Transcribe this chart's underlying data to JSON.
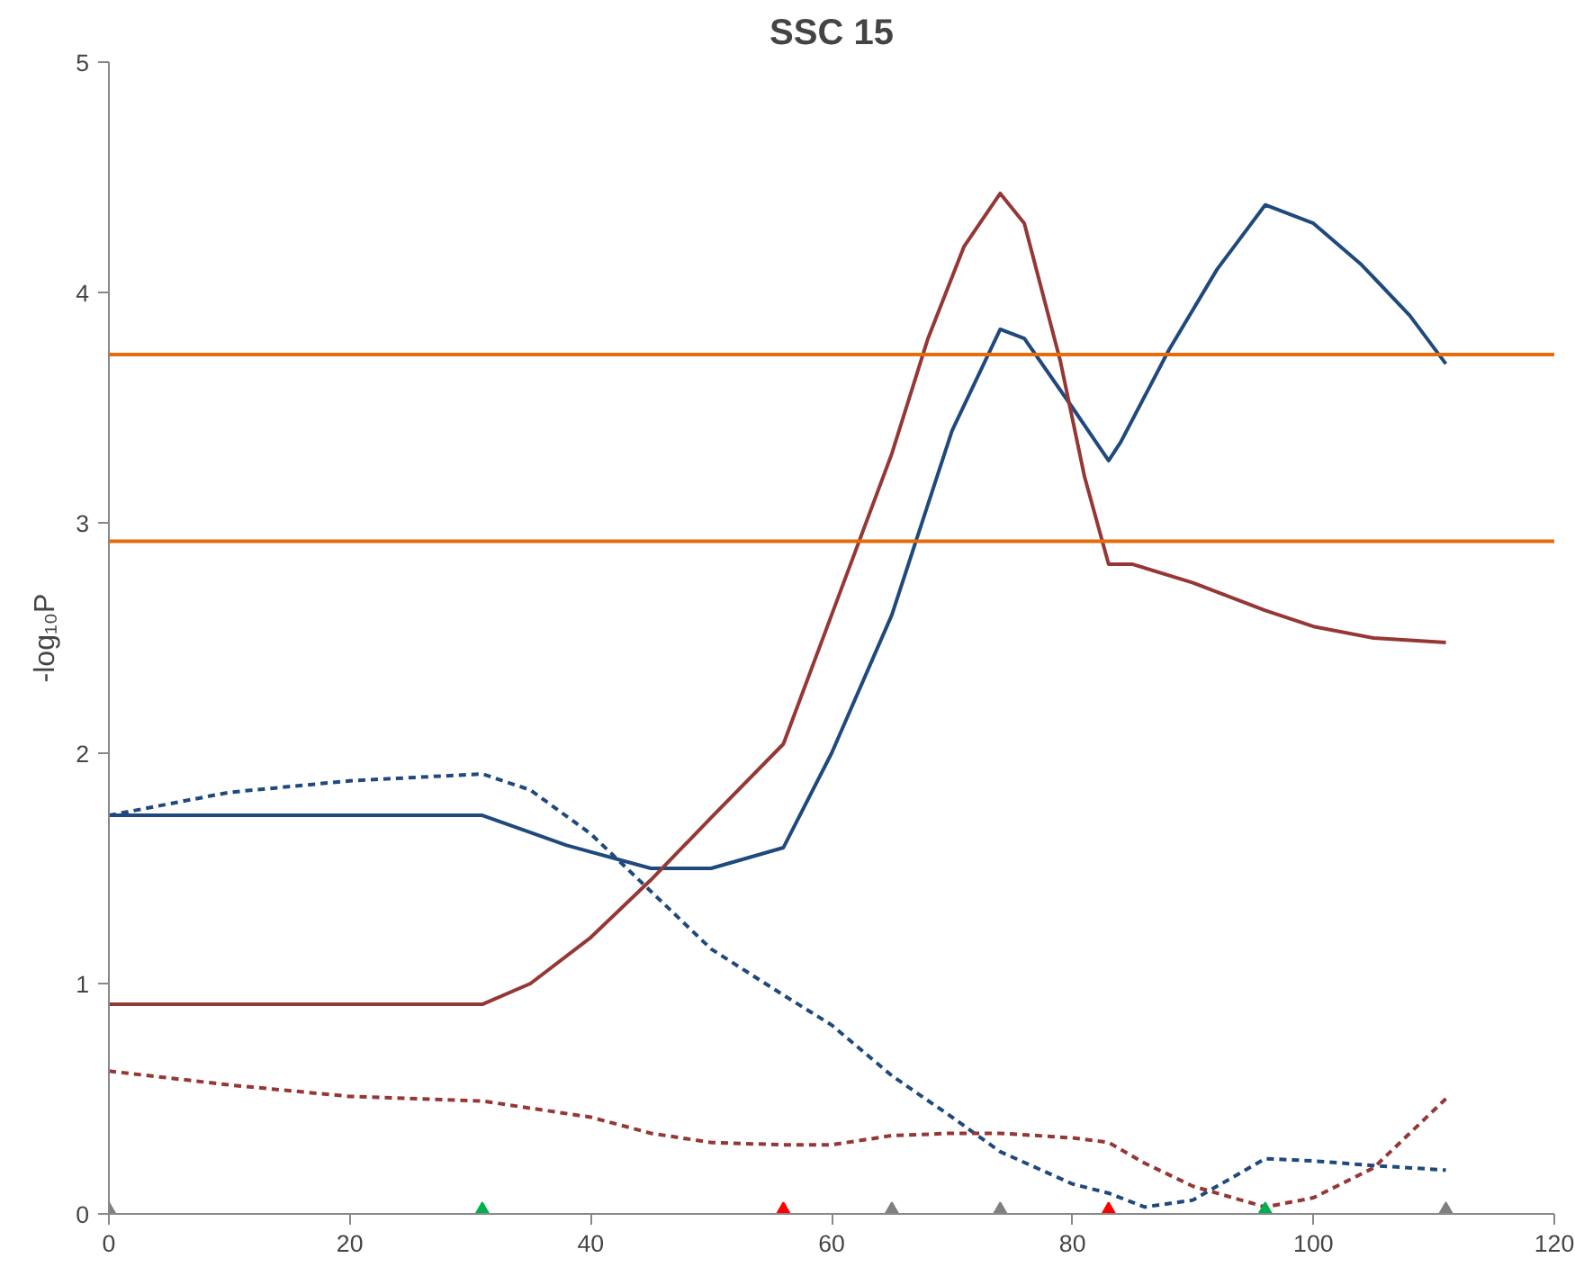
{
  "chart_data": {
    "type": "line",
    "title": "SSC 15",
    "ylabel": "-log₁₀P",
    "xlim": [
      0,
      120
    ],
    "ylim": [
      0,
      5
    ],
    "xticks": [
      0,
      20,
      40,
      60,
      80,
      100,
      120
    ],
    "yticks": [
      0,
      1,
      2,
      3,
      4,
      5
    ],
    "grid": false,
    "marker": "none",
    "series": [
      {
        "color": "#1f497d",
        "line_style": "solid",
        "x": [
          0,
          31,
          38,
          45,
          50,
          56,
          60,
          65,
          70,
          74,
          76,
          80,
          83,
          84,
          88,
          92,
          96,
          100,
          104,
          108,
          111
        ],
        "values": [
          1.73,
          1.73,
          1.6,
          1.5,
          1.5,
          1.59,
          2.0,
          2.6,
          3.4,
          3.84,
          3.8,
          3.5,
          3.27,
          3.35,
          3.75,
          4.1,
          4.38,
          4.3,
          4.12,
          3.9,
          3.69
        ]
      },
      {
        "color": "#953735",
        "line_style": "solid",
        "x": [
          0,
          31,
          35,
          40,
          45,
          50,
          56,
          60,
          65,
          68,
          71,
          74,
          76,
          79,
          81,
          83,
          85,
          90,
          96,
          100,
          105,
          111
        ],
        "values": [
          0.91,
          0.91,
          1.0,
          1.2,
          1.45,
          1.72,
          2.04,
          2.6,
          3.3,
          3.8,
          4.2,
          4.43,
          4.3,
          3.7,
          3.2,
          2.82,
          2.82,
          2.74,
          2.62,
          2.55,
          2.5,
          2.48
        ]
      },
      {
        "color": "#1f497d",
        "line_style": "dashed",
        "x": [
          0,
          10,
          20,
          31,
          35,
          40,
          45,
          50,
          56,
          60,
          65,
          70,
          74,
          80,
          83,
          86,
          90,
          96,
          100,
          105,
          111
        ],
        "values": [
          1.73,
          1.83,
          1.88,
          1.91,
          1.84,
          1.65,
          1.4,
          1.15,
          0.95,
          0.82,
          0.6,
          0.42,
          0.27,
          0.13,
          0.09,
          0.03,
          0.06,
          0.24,
          0.23,
          0.21,
          0.19
        ]
      },
      {
        "color": "#953735",
        "line_style": "dashed",
        "x": [
          0,
          10,
          20,
          31,
          40,
          45,
          50,
          56,
          60,
          65,
          70,
          74,
          80,
          83,
          86,
          90,
          96,
          100,
          105,
          111
        ],
        "values": [
          0.62,
          0.56,
          0.51,
          0.49,
          0.42,
          0.35,
          0.31,
          0.3,
          0.3,
          0.34,
          0.35,
          0.35,
          0.33,
          0.31,
          0.22,
          0.12,
          0.03,
          0.07,
          0.2,
          0.5
        ]
      },
      {
        "type": "scatter",
        "marker": "triangle",
        "x": [
          0,
          31,
          56,
          65,
          74,
          83,
          96,
          111
        ],
        "values": [
          0,
          0,
          0,
          0,
          0,
          0,
          0,
          0
        ],
        "colors": [
          "#808080",
          "#00b050",
          "#ff0000",
          "#808080",
          "#808080",
          "#ff0000",
          "#00b050",
          "#808080"
        ]
      }
    ],
    "ref_lines": [
      {
        "axis": "y",
        "value": 3.73,
        "color": "#e46c0a",
        "line_style": "solid"
      },
      {
        "axis": "y",
        "value": 2.92,
        "color": "#e46c0a",
        "line_style": "solid"
      }
    ]
  }
}
